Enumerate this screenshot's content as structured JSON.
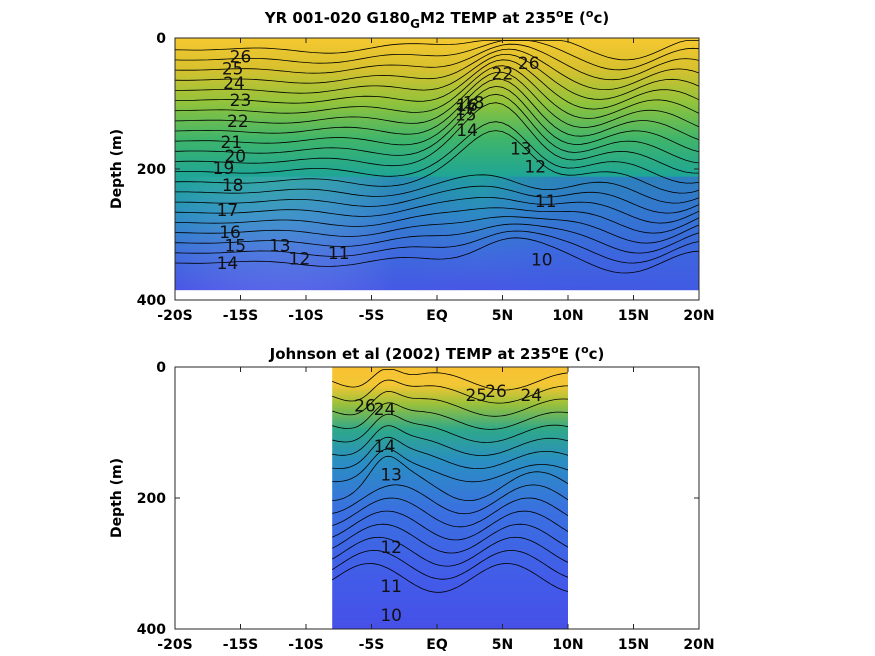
{
  "chart_data": [
    {
      "type": "heatmap",
      "title_main": "YR 001-020 G180",
      "title_sub": "G",
      "title_mid": "M2 TEMP at 235",
      "title_deg": "o",
      "title_unit_a": "E (",
      "title_unit_b": "c)",
      "ylabel": "Depth (m)",
      "xlim": [
        -20,
        20
      ],
      "ylim": [
        0,
        400
      ],
      "x_ticks": [
        "-20S",
        "-15S",
        "-10S",
        "-5S",
        "EQ",
        "5N",
        "10N",
        "15N",
        "20N"
      ],
      "y_ticks": [
        "0",
        "200",
        "400"
      ],
      "data_x_range": [
        -20,
        20
      ],
      "data_depth_max": 385,
      "contour_labels": [
        {
          "text": "26",
          "x": -15.0,
          "y": 30
        },
        {
          "text": "25",
          "x": -15.6,
          "y": 48
        },
        {
          "text": "24",
          "x": -15.5,
          "y": 70
        },
        {
          "text": "23",
          "x": -15.0,
          "y": 96
        },
        {
          "text": "22",
          "x": -15.2,
          "y": 128
        },
        {
          "text": "21",
          "x": -15.7,
          "y": 160
        },
        {
          "text": "20",
          "x": -15.4,
          "y": 182
        },
        {
          "text": "19",
          "x": -16.3,
          "y": 200
        },
        {
          "text": "18",
          "x": -15.6,
          "y": 226
        },
        {
          "text": "17",
          "x": -16.0,
          "y": 264
        },
        {
          "text": "16",
          "x": -15.8,
          "y": 298
        },
        {
          "text": "15",
          "x": -15.4,
          "y": 318
        },
        {
          "text": "14",
          "x": -16.0,
          "y": 345
        },
        {
          "text": "13",
          "x": -12.0,
          "y": 318
        },
        {
          "text": "12",
          "x": -10.5,
          "y": 338
        },
        {
          "text": "11",
          "x": -7.5,
          "y": 330
        },
        {
          "text": "26",
          "x": 7.0,
          "y": 40
        },
        {
          "text": "22",
          "x": 5.0,
          "y": 56
        },
        {
          "text": "18",
          "x": 2.8,
          "y": 100
        },
        {
          "text": "17",
          "x": 2.2,
          "y": 110
        },
        {
          "text": "16",
          "x": 2.3,
          "y": 104
        },
        {
          "text": "15",
          "x": 2.2,
          "y": 118
        },
        {
          "text": "14",
          "x": 2.3,
          "y": 142
        },
        {
          "text": "13",
          "x": 6.4,
          "y": 170
        },
        {
          "text": "12",
          "x": 7.5,
          "y": 198
        },
        {
          "text": "11",
          "x": 8.3,
          "y": 250
        },
        {
          "text": "10",
          "x": 8.0,
          "y": 340
        }
      ]
    },
    {
      "type": "heatmap",
      "title_main": "Johnson et al (2002) TEMP at 235",
      "title_deg": "o",
      "title_unit_a": "E (",
      "title_unit_b": "c)",
      "ylabel": "Depth (m)",
      "xlim": [
        -20,
        20
      ],
      "ylim": [
        0,
        400
      ],
      "x_ticks": [
        "-20S",
        "-15S",
        "-10S",
        "-5S",
        "EQ",
        "5N",
        "10N",
        "15N",
        "20N"
      ],
      "y_ticks": [
        "0",
        "200",
        "400"
      ],
      "data_x_range": [
        -8,
        10
      ],
      "data_depth_max": 400,
      "contour_labels": [
        {
          "text": "26",
          "x": -5.5,
          "y": 60
        },
        {
          "text": "24",
          "x": -4.0,
          "y": 66
        },
        {
          "text": "14",
          "x": -4.0,
          "y": 122
        },
        {
          "text": "13",
          "x": -3.5,
          "y": 166
        },
        {
          "text": "25",
          "x": 3.0,
          "y": 44
        },
        {
          "text": "26",
          "x": 4.5,
          "y": 38
        },
        {
          "text": "24",
          "x": 7.2,
          "y": 44
        },
        {
          "text": "12",
          "x": -3.5,
          "y": 276
        },
        {
          "text": "11",
          "x": -3.5,
          "y": 336
        },
        {
          "text": "10",
          "x": -3.5,
          "y": 380
        }
      ]
    }
  ]
}
